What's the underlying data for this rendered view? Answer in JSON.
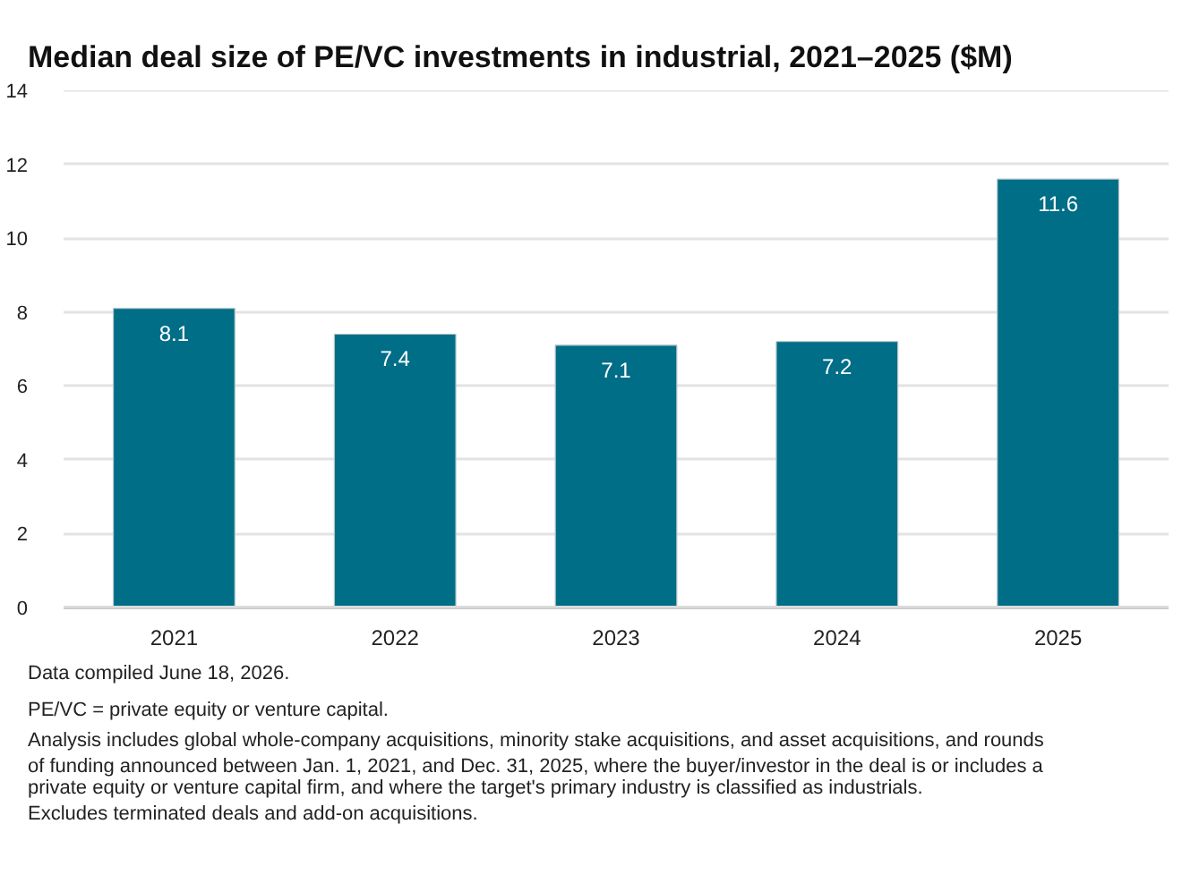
{
  "chart_data": {
    "type": "bar",
    "title": "Median deal size of PE/VC investments in industrial, 2021–2025 ($M)",
    "categories": [
      "2021",
      "2022",
      "2023",
      "2024",
      "2025"
    ],
    "values": [
      8.1,
      7.4,
      7.1,
      7.2,
      11.6
    ],
    "color": "#006e87",
    "ylim": [
      0,
      14
    ],
    "yticks": [
      0,
      2,
      4,
      6,
      8,
      10,
      12,
      14
    ],
    "grid": "y",
    "data_labels": true,
    "annotations": [
      "Data compiled June 18, 2026.",
      "PE/VC = private equity or venture capital.",
      "Analysis includes global whole-company acquisitions, minority stake acquisitions, and asset acquisitions, and rounds of funding announced between Jan. 1, 2021, and Dec. 31, 2025, where the buyer/investor in the deal is or includes a private equity or venture capital firm, and where the target's primary industry is classified as industrials.",
      "Excludes terminated deals and add-on acquisitions."
    ]
  }
}
